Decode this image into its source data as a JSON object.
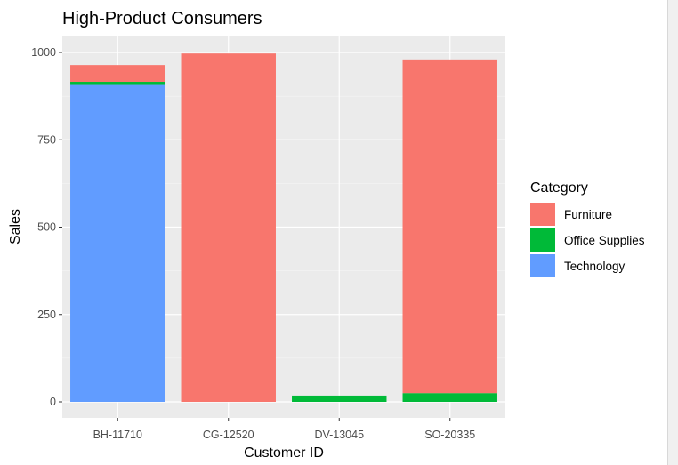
{
  "chart_data": {
    "type": "bar",
    "stacked": true,
    "title": "High-Product Consumers",
    "xlabel": "Customer ID",
    "ylabel": "Sales",
    "categories": [
      "BH-11710",
      "CG-12520",
      "DV-13045",
      "SO-20335"
    ],
    "ylim": [
      0,
      1025
    ],
    "yticks": [
      0,
      250,
      500,
      750,
      1000
    ],
    "legend_title": "Category",
    "legend_position": "right",
    "grid": true,
    "series": [
      {
        "name": "Technology",
        "color": "#619CFF",
        "values": [
          907,
          0,
          0,
          0
        ]
      },
      {
        "name": "Office Supplies",
        "color": "#00BA38",
        "values": [
          9,
          0,
          18,
          25
        ]
      },
      {
        "name": "Furniture",
        "color": "#F8766D",
        "values": [
          48,
          997,
          0,
          955
        ]
      }
    ],
    "legend_order": [
      "Furniture",
      "Office Supplies",
      "Technology"
    ]
  }
}
